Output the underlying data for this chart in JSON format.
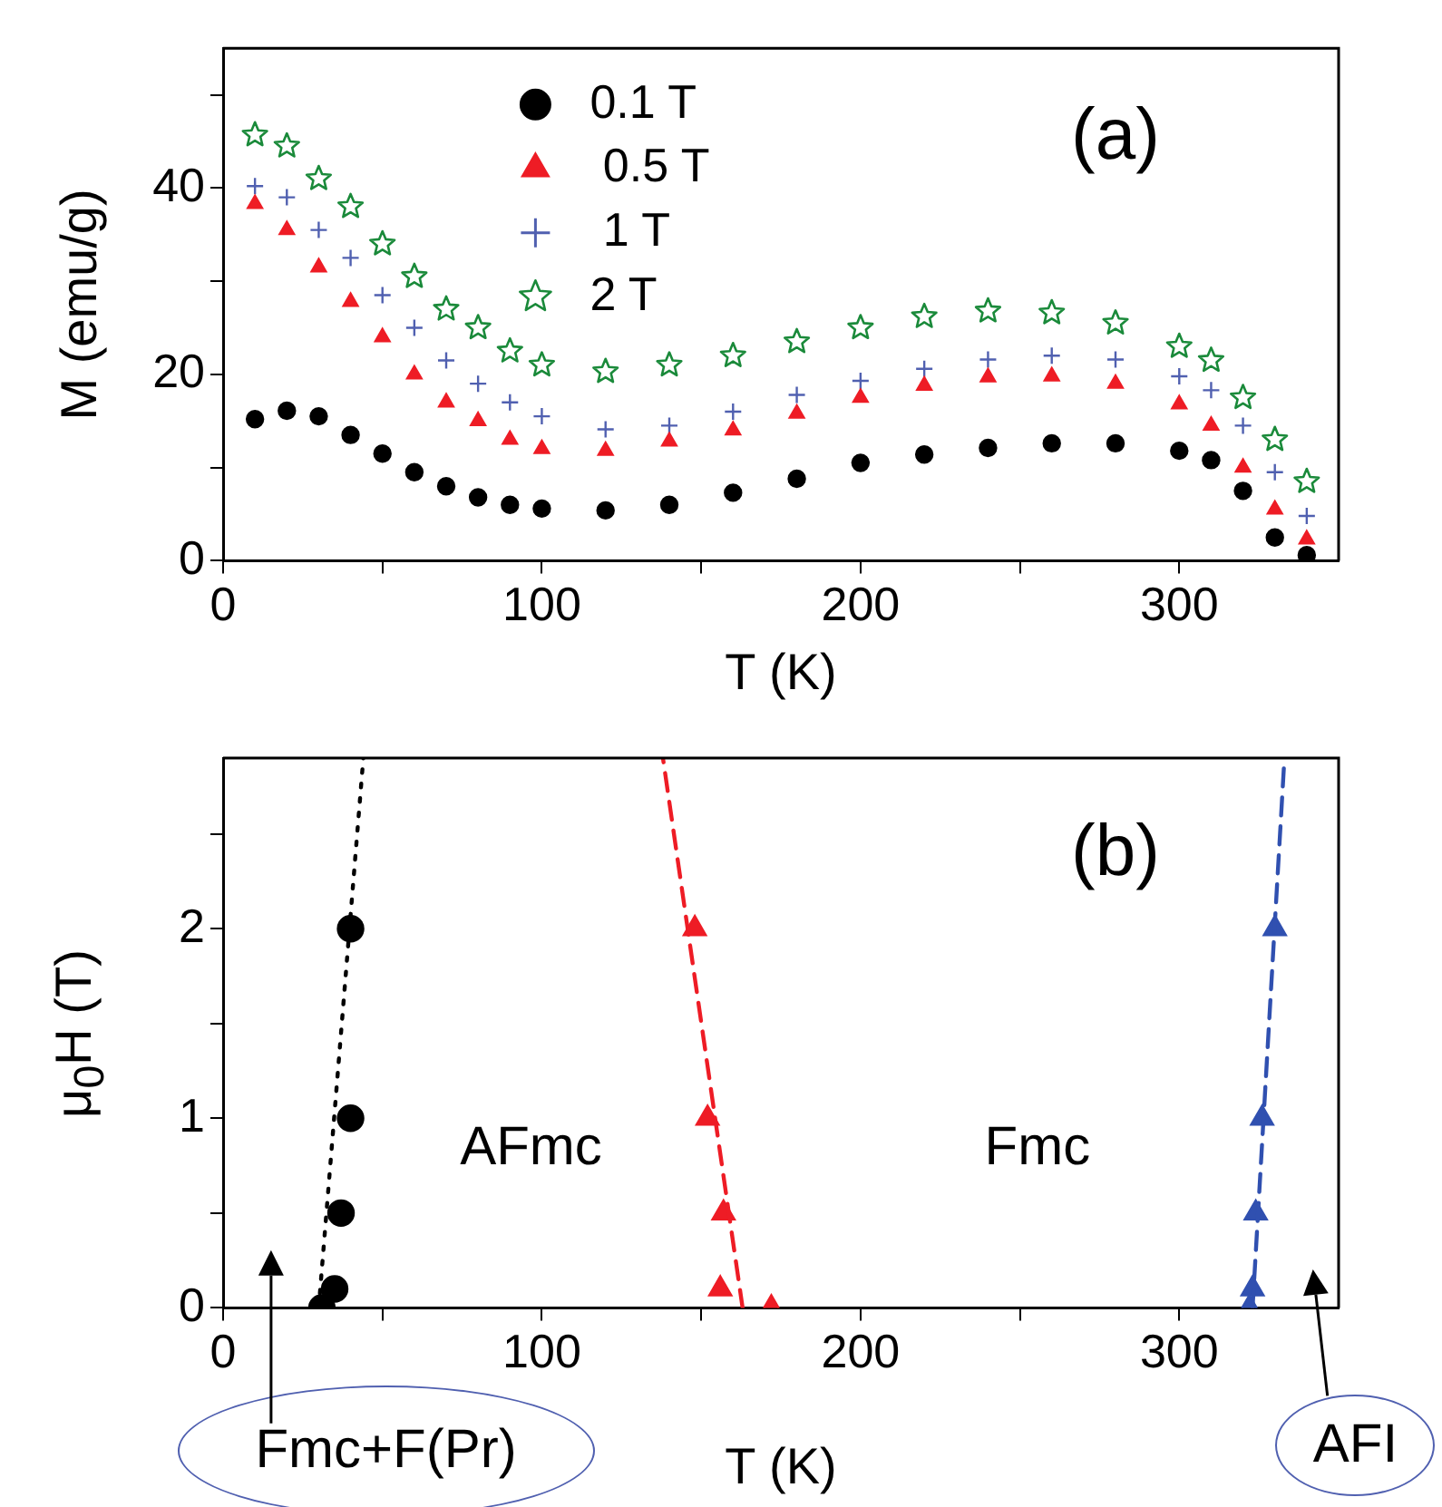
{
  "chart_data": [
    {
      "type": "scatter",
      "annotations": [
        "(a)"
      ],
      "xlabel": "T (K)",
      "ylabel": "M (emu/g)",
      "xlim": [
        0,
        350
      ],
      "xticks": [
        0,
        {
          "value": 50,
          "label": null
        },
        100,
        {
          "value": 150,
          "label": null
        },
        200,
        {
          "value": 250,
          "label": null
        },
        300
      ],
      "ylim": [
        0,
        55
      ],
      "yticks": [
        0,
        {
          "value": 10,
          "label": null
        },
        20,
        {
          "value": 30,
          "label": null
        },
        40,
        {
          "value": 50,
          "label": null
        }
      ],
      "legend": "top left",
      "x": [
        10,
        20,
        30,
        40,
        50,
        60,
        70,
        80,
        90,
        100,
        120,
        140,
        160,
        180,
        200,
        220,
        240,
        260,
        280,
        300,
        310,
        320,
        330,
        340
      ],
      "series": [
        {
          "name": "0.1 T",
          "color": "#000000",
          "marker": "circle",
          "values": [
            15.2,
            16.1,
            15.5,
            13.5,
            11.5,
            9.5,
            8,
            6.8,
            6,
            5.6,
            5.4,
            6,
            7.3,
            8.8,
            10.5,
            11.4,
            12.1,
            12.6,
            12.6,
            11.8,
            10.8,
            7.5,
            2.5,
            0.6
          ]
        },
        {
          "name": " 0.5 T",
          "color": "#ee1c25",
          "marker": "triangle",
          "values": [
            38.3,
            35.5,
            31.5,
            27.8,
            24,
            20,
            17,
            15,
            13,
            12,
            11.8,
            12.8,
            14,
            15.8,
            17.5,
            18.8,
            19.7,
            19.8,
            19,
            16.8,
            14.5,
            10,
            5.5,
            2.3
          ]
        },
        {
          "name": " 1 T",
          "color": "#5060b0",
          "marker": "cross",
          "values": [
            40.2,
            39,
            35.5,
            32.5,
            28.5,
            25,
            21.5,
            19,
            17,
            15.5,
            14.1,
            14.5,
            16,
            17.8,
            19.3,
            20.6,
            21.6,
            22,
            21.6,
            19.8,
            18.3,
            14.5,
            9.5,
            4.8
          ]
        },
        {
          "name": "2 T",
          "color": "#1a8a3a",
          "marker": "star",
          "values": [
            45.7,
            44.5,
            41,
            38,
            34,
            30.5,
            27,
            25,
            22.5,
            21,
            20.3,
            21,
            22,
            23.5,
            25,
            26.2,
            26.8,
            26.6,
            25.5,
            23,
            21.5,
            17.5,
            13,
            8.5
          ]
        }
      ]
    },
    {
      "type": "scatter",
      "annotations": [
        "(b)",
        "AFmc",
        "Fmc",
        "Fmc+F(Pr)",
        "AFI"
      ],
      "xlabel": "T (K)",
      "ylabel": "μ$_{0}$H (T)",
      "xlim": [
        0,
        350
      ],
      "xticks": [
        0,
        {
          "value": 50,
          "label": null
        },
        100,
        {
          "value": 150,
          "label": null
        },
        200,
        {
          "value": 250,
          "label": null
        },
        300
      ],
      "ylim": [
        0,
        2.9
      ],
      "yticks": [
        0,
        {
          "value": 0.5,
          "label": null
        },
        1,
        {
          "value": 1.5,
          "label": null
        },
        2,
        {
          "value": 2.5,
          "label": null
        }
      ],
      "series": [
        {
          "type": "line",
          "color": "#000000",
          "line_style": "dotted",
          "marker": "none",
          "x": [
            30,
            44
          ],
          "values": [
            0,
            2.9
          ]
        },
        {
          "type": "line",
          "color": "#ee1c25",
          "line_style": "dashed",
          "marker": "none",
          "x": [
            163,
            138
          ],
          "values": [
            0,
            2.9
          ]
        },
        {
          "type": "line",
          "color": "#3050b0",
          "line_style": "dashed",
          "marker": "none",
          "x": [
            323,
            333
          ],
          "values": [
            0,
            2.9
          ]
        },
        {
          "type": "scatter",
          "color": "#000000",
          "marker": "circle",
          "x": [
            40,
            40,
            37,
            35,
            31
          ],
          "values": [
            2,
            1,
            0.5,
            0.1,
            0
          ]
        },
        {
          "type": "scatter",
          "color": "#ee1c25",
          "marker": "triangle",
          "x": [
            148,
            152,
            157,
            156,
            172
          ],
          "values": [
            2,
            1,
            0.5,
            0.1,
            0
          ]
        },
        {
          "type": "scatter",
          "color": "#3050b0",
          "marker": "triangle",
          "x": [
            330,
            326,
            324,
            323,
            322
          ],
          "values": [
            2,
            1,
            0.5,
            0.1,
            0
          ]
        }
      ]
    }
  ]
}
